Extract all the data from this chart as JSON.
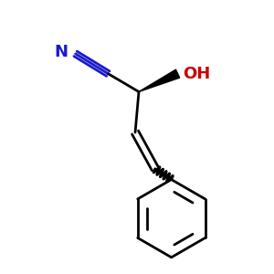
{
  "bg_color": "#ffffff",
  "bond_color": "#000000",
  "cn_color": "#1a1acc",
  "oh_color": "#cc0000",
  "bond_width": 2.0,
  "figsize": [
    3.0,
    3.0
  ],
  "dpi": 100,
  "oh_text": "OH",
  "cn_text": "N"
}
